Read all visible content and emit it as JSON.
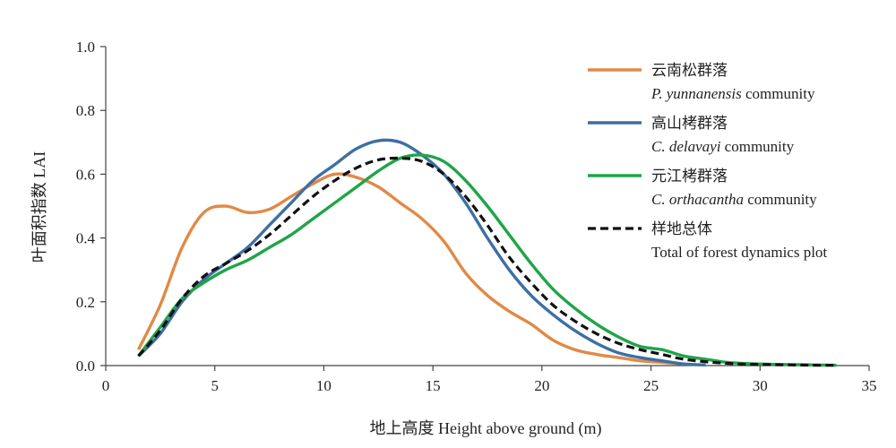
{
  "chart_data": {
    "type": "line",
    "xlabel": "地上高度 Height above ground (m)",
    "ylabel": "叶面积指数  LAI",
    "xlim": [
      0,
      35
    ],
    "ylim": [
      0,
      1.0
    ],
    "x_ticks": [
      "0",
      "5",
      "10",
      "15",
      "20",
      "25",
      "30",
      "35"
    ],
    "y_ticks": [
      "0.0",
      "0.2",
      "0.4",
      "0.6",
      "0.8",
      "1.0"
    ],
    "grid": false,
    "legend_position": "top-right",
    "series": [
      {
        "name": "云南松群落",
        "name_latin": "P. yunnanensis",
        "name_suffix": " community",
        "color": "#E08A46",
        "style": "solid",
        "x": [
          1.5,
          2.5,
          3.5,
          4.5,
          5.5,
          6.5,
          7.5,
          8.5,
          9.5,
          10.5,
          11.5,
          12.5,
          13.5,
          14.5,
          15.5,
          16.5,
          17.5,
          18.5,
          19.5,
          20.5,
          21.5,
          22.5,
          23.5,
          24.5,
          25.5,
          26.5
        ],
        "y": [
          0.05,
          0.19,
          0.37,
          0.48,
          0.5,
          0.48,
          0.49,
          0.53,
          0.57,
          0.6,
          0.59,
          0.56,
          0.51,
          0.46,
          0.39,
          0.29,
          0.22,
          0.17,
          0.13,
          0.08,
          0.05,
          0.035,
          0.025,
          0.015,
          0.01,
          0.005
        ]
      },
      {
        "name": "高山栲群落",
        "name_latin": "C. delavayi",
        "name_suffix": " community",
        "color": "#3E6FA3",
        "style": "solid",
        "x": [
          1.5,
          2.5,
          3.5,
          4.5,
          5.5,
          6.5,
          7.5,
          8.5,
          9.5,
          10.5,
          11.5,
          12.5,
          13.5,
          14.5,
          15.5,
          16.5,
          17.5,
          18.5,
          19.5,
          20.5,
          21.5,
          22.5,
          23.5,
          24.5,
          25.5,
          26.5,
          27.5
        ],
        "y": [
          0.03,
          0.1,
          0.2,
          0.27,
          0.32,
          0.37,
          0.44,
          0.51,
          0.58,
          0.63,
          0.68,
          0.705,
          0.7,
          0.66,
          0.6,
          0.51,
          0.4,
          0.3,
          0.22,
          0.16,
          0.11,
          0.07,
          0.04,
          0.025,
          0.015,
          0.005,
          0.002
        ]
      },
      {
        "name": "元江栲群落",
        "name_latin": "C. orthacantha",
        "name_suffix": " community",
        "color": "#1FA548",
        "style": "solid",
        "x": [
          1.5,
          2.5,
          3.5,
          4.5,
          5.5,
          6.5,
          7.5,
          8.5,
          9.5,
          10.5,
          11.5,
          12.5,
          13.5,
          14.5,
          15.5,
          16.5,
          17.5,
          18.5,
          19.5,
          20.5,
          21.5,
          22.5,
          23.5,
          24.5,
          25.5,
          26.5,
          27.5,
          28.5,
          29.5,
          30.5,
          31.5,
          32.5,
          33.5
        ],
        "y": [
          0.03,
          0.12,
          0.21,
          0.26,
          0.3,
          0.33,
          0.37,
          0.41,
          0.46,
          0.51,
          0.56,
          0.61,
          0.65,
          0.66,
          0.64,
          0.58,
          0.5,
          0.41,
          0.32,
          0.24,
          0.18,
          0.13,
          0.09,
          0.06,
          0.05,
          0.03,
          0.02,
          0.01,
          0.006,
          0.004,
          0.003,
          0.002,
          0.001
        ]
      },
      {
        "name": "样地总体",
        "name_latin": "",
        "name_suffix": "Total of forest dynamics plot",
        "color": "#111111",
        "style": "dashed",
        "x": [
          1.5,
          2.5,
          3.5,
          4.5,
          5.5,
          6.5,
          7.5,
          8.5,
          9.5,
          10.5,
          11.5,
          12.5,
          13.5,
          14.5,
          15.5,
          16.5,
          17.5,
          18.5,
          19.5,
          20.5,
          21.5,
          22.5,
          23.5,
          24.5,
          25.5,
          26.5,
          27.5,
          28.5,
          29.5,
          30.5,
          31.5,
          32.5,
          33.5
        ],
        "y": [
          0.03,
          0.11,
          0.21,
          0.28,
          0.32,
          0.36,
          0.41,
          0.47,
          0.53,
          0.58,
          0.62,
          0.645,
          0.65,
          0.64,
          0.6,
          0.53,
          0.44,
          0.34,
          0.26,
          0.19,
          0.14,
          0.1,
          0.07,
          0.05,
          0.035,
          0.02,
          0.012,
          0.007,
          0.004,
          0.003,
          0.002,
          0.001,
          0.001
        ]
      }
    ]
  }
}
